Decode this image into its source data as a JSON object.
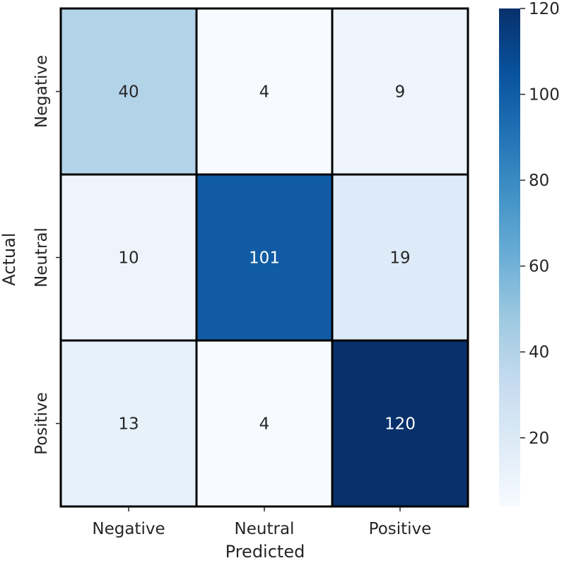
{
  "chart_data": {
    "type": "heatmap",
    "xlabel": "Predicted",
    "ylabel": "Actual",
    "x_categories": [
      "Negative",
      "Neutral",
      "Positive"
    ],
    "y_categories": [
      "Negative",
      "Neutral",
      "Positive"
    ],
    "values": [
      [
        40,
        4,
        9
      ],
      [
        10,
        101,
        19
      ],
      [
        13,
        4,
        120
      ]
    ],
    "colorbar": {
      "colormap": "Blues",
      "range": [
        4,
        120
      ],
      "ticks": [
        20,
        40,
        60,
        80,
        100,
        120
      ]
    },
    "colors": {
      "low": "#f7fbff",
      "high": "#08306b",
      "cell_border": "#000000",
      "dark_text": "#262626",
      "light_text": "#ffffff"
    }
  }
}
